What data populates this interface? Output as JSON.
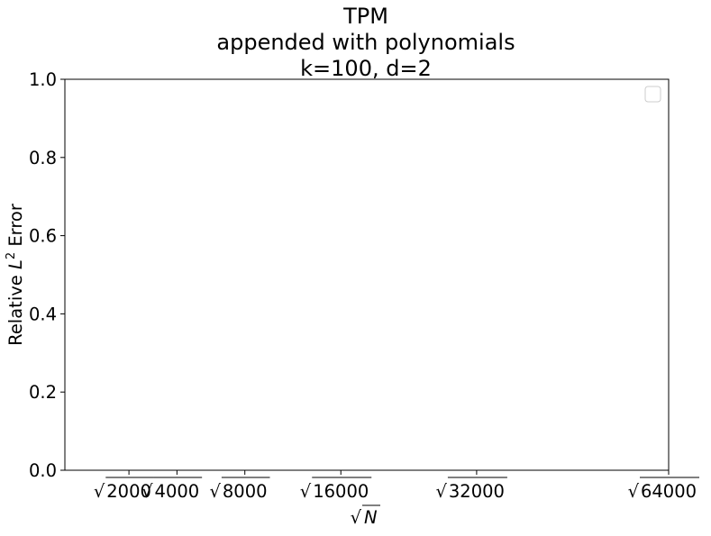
{
  "chart_data": {
    "type": "line",
    "title_lines": [
      "TPM",
      "appended with polynomials",
      "k=100, d=2"
    ],
    "xlabel": "N",
    "xlabel_prefix": "√",
    "ylabel": "Relative L² Error",
    "ylabel_parts": {
      "before": "Relative ",
      "italic": "L",
      "sup": "2",
      "after": " Error"
    },
    "x_scale": "sqrt",
    "xlim": [
      400,
      64000
    ],
    "ylim": [
      0.0,
      1.0
    ],
    "x_ticks": [
      {
        "value": 2000,
        "label": "2000"
      },
      {
        "value": 4000,
        "label": "4000"
      },
      {
        "value": 8000,
        "label": "8000"
      },
      {
        "value": 16000,
        "label": "16000"
      },
      {
        "value": 32000,
        "label": "32000"
      },
      {
        "value": 64000,
        "label": "64000"
      }
    ],
    "y_ticks": [
      {
        "value": 0.0,
        "label": "0.0"
      },
      {
        "value": 0.2,
        "label": "0.2"
      },
      {
        "value": 0.4,
        "label": "0.4"
      },
      {
        "value": 0.6,
        "label": "0.6"
      },
      {
        "value": 0.8,
        "label": "0.8"
      },
      {
        "value": 1.0,
        "label": "1.0"
      }
    ],
    "series": [],
    "legend": {
      "placement": "top-right",
      "entries": []
    },
    "grid": false,
    "colors": {
      "axis": "#000000",
      "legend_border": "#cccccc",
      "background": "#ffffff"
    }
  }
}
